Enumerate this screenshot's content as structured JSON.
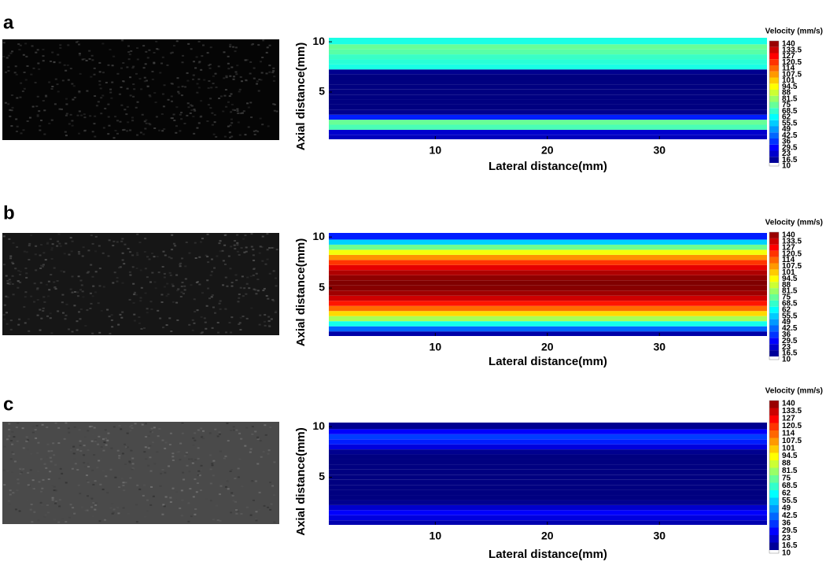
{
  "chart_data": [
    {
      "type": "contour",
      "panel": "a",
      "xlabel": "Lateral distance(mm)",
      "ylabel": "Axial distance(mm)",
      "colorbar_title": "Velocity (mm/s)",
      "xlim": [
        0.5,
        39.6
      ],
      "xticks": [
        10,
        20,
        30
      ],
      "ylim": [
        0.3,
        10.4
      ],
      "yticks": [
        5,
        10
      ],
      "y": [
        0.5,
        1.0,
        1.5,
        2.0,
        2.5,
        3.0,
        3.5,
        4.0,
        4.5,
        5.0,
        5.5,
        6.0,
        6.5,
        7.0,
        7.5,
        8.0,
        8.5,
        9.0,
        9.5,
        10.0
      ],
      "values": [
        18,
        20,
        68,
        72,
        30,
        12,
        10,
        10,
        10,
        10,
        10,
        10,
        10,
        12,
        62,
        64,
        66,
        70,
        72,
        62
      ],
      "clim": [
        10,
        140
      ],
      "colorbar_ticks": [
        10,
        16.5,
        23,
        29.5,
        36,
        42.5,
        49,
        55.5,
        62,
        68.5,
        75,
        81.5,
        88,
        94.5,
        101,
        107.5,
        114,
        120.5,
        127,
        133.5,
        140
      ]
    },
    {
      "type": "contour",
      "panel": "b",
      "xlabel": "Lateral distance(mm)",
      "ylabel": "Axial distance(mm)",
      "colorbar_title": "Velocity (mm/s)",
      "xlim": [
        0.5,
        39.6
      ],
      "xticks": [
        10,
        20,
        30
      ],
      "ylim": [
        0.3,
        10.4
      ],
      "yticks": [
        5,
        10
      ],
      "y": [
        0.5,
        1.0,
        1.5,
        2.0,
        2.5,
        3.0,
        3.5,
        4.0,
        4.5,
        5.0,
        5.5,
        6.0,
        6.5,
        7.0,
        7.5,
        8.0,
        8.5,
        9.0,
        9.5,
        10.0
      ],
      "values": [
        15,
        39,
        61,
        80,
        96,
        110,
        121,
        130,
        136,
        139,
        140,
        138,
        134,
        127,
        117,
        105,
        90,
        73,
        53,
        30
      ],
      "clim": [
        10,
        140
      ],
      "colorbar_ticks": [
        10,
        16.5,
        23,
        29.5,
        36,
        42.5,
        49,
        55.5,
        62,
        68.5,
        75,
        81.5,
        88,
        94.5,
        101,
        107.5,
        114,
        120.5,
        127,
        133.5,
        140
      ]
    },
    {
      "type": "contour",
      "panel": "c",
      "xlabel": "Lateral distance(mm)",
      "ylabel": "Axial distance(mm)",
      "colorbar_title": "Velocity (mm/s)",
      "xlim": [
        0.5,
        39.6
      ],
      "xticks": [
        10,
        20,
        30
      ],
      "ylim": [
        0.3,
        10.4
      ],
      "yticks": [
        5,
        10
      ],
      "y": [
        0.5,
        1.0,
        1.5,
        2.0,
        2.5,
        3.0,
        3.5,
        4.0,
        4.5,
        5.0,
        5.5,
        6.0,
        6.5,
        7.0,
        7.5,
        8.0,
        8.5,
        9.0,
        9.5,
        10.0
      ],
      "values": [
        16,
        22,
        26,
        20,
        12,
        10,
        10,
        10,
        10,
        10,
        10,
        10,
        10,
        10,
        12,
        22,
        30,
        34,
        26,
        12
      ],
      "clim": [
        10,
        140
      ],
      "colorbar_ticks": [
        10,
        16.5,
        23,
        29.5,
        36,
        42.5,
        49,
        55.5,
        62,
        68.5,
        75,
        81.5,
        88,
        94.5,
        101,
        107.5,
        114,
        120.5,
        127,
        133.5,
        140
      ]
    }
  ]
}
